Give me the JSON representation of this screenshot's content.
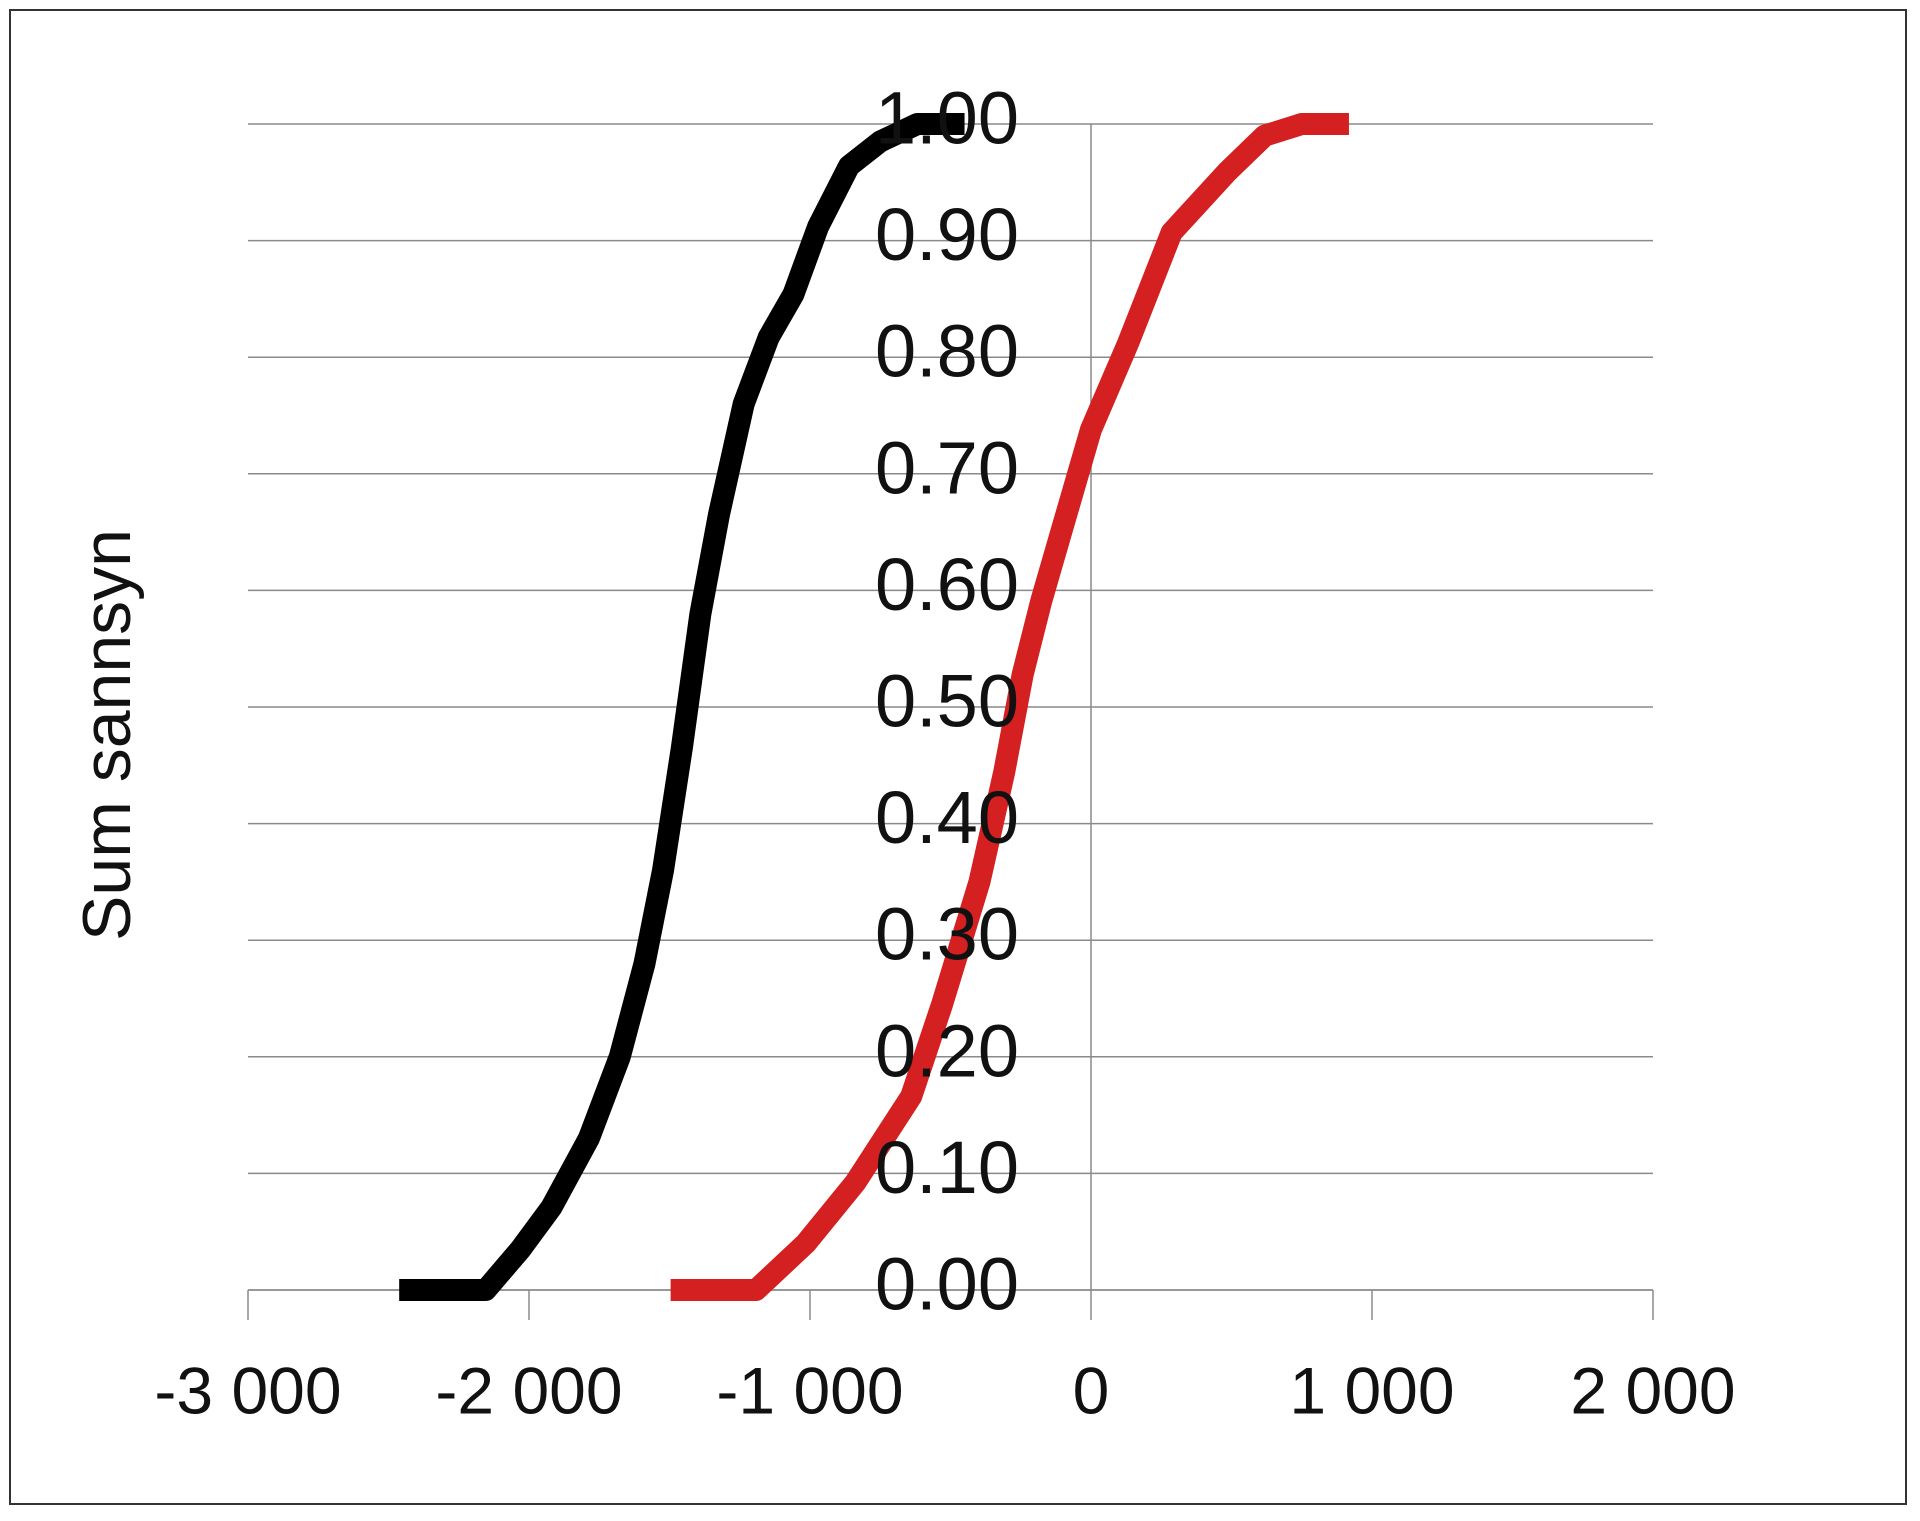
{
  "chart_data": {
    "type": "line",
    "y_label": "Sum sannsyn",
    "series": [
      {
        "color": "#000000",
        "x": [
          -2462,
          -2154,
          -2030,
          -1920,
          -1787,
          -1677,
          -1589,
          -1523,
          -1456,
          -1390,
          -1324,
          -1236,
          -1147,
          -1059,
          -971,
          -861,
          -750,
          -618,
          -450
        ],
        "values": [
          0,
          0,
          0.035,
          0.071,
          0.13,
          0.2,
          0.28,
          0.36,
          0.465,
          0.58,
          0.665,
          0.76,
          0.817,
          0.854,
          0.912,
          0.964,
          0.985,
          1.0,
          1.0
        ]
      },
      {
        "color": "#d42020",
        "x": [
          -1496,
          -1192,
          -1015,
          -839,
          -640,
          -530,
          -397,
          -309,
          -243,
          -177,
          -88,
          0,
          132,
          287,
          485,
          618,
          750,
          918
        ],
        "values": [
          0,
          0,
          0.04,
          0.092,
          0.166,
          0.245,
          0.35,
          0.444,
          0.528,
          0.591,
          0.665,
          0.738,
          0.812,
          0.907,
          0.959,
          0.99,
          1.0,
          1.0
        ]
      }
    ],
    "xlim": [
      -3000,
      2000
    ],
    "xticks": [
      {
        "value": -3000,
        "label": "-3 000"
      },
      {
        "value": -2000,
        "label": "-2 000"
      },
      {
        "value": -1000,
        "label": "-1 000"
      },
      0,
      {
        "value": 1000,
        "label": "1 000"
      },
      {
        "value": 2000,
        "label": "2 000"
      }
    ],
    "ylim": [
      0,
      1
    ],
    "yticks": [
      {
        "value": 0,
        "label": "0.00"
      },
      {
        "value": 0.1,
        "label": "0.10"
      },
      {
        "value": 0.2,
        "label": "0.20"
      },
      {
        "value": 0.3,
        "label": "0.30"
      },
      {
        "value": 0.4,
        "label": "0.40"
      },
      {
        "value": 0.5,
        "label": "0.50"
      },
      {
        "value": 0.6,
        "label": "0.60"
      },
      {
        "value": 0.7,
        "label": "0.70"
      },
      {
        "value": 0.8,
        "label": "0.80"
      },
      {
        "value": 0.9,
        "label": "0.90"
      },
      {
        "value": 1,
        "label": "1.00"
      }
    ],
    "grid": true
  }
}
